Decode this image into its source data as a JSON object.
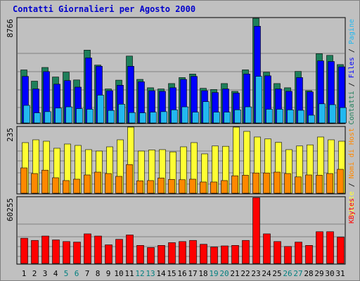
{
  "title": "Contatti Giornalieri per Agosto 2000",
  "colors": {
    "background": "#C0C0C0",
    "panel": "#C0C0C0",
    "grid": "#808080",
    "title": "#0000CC",
    "hits": "#1E7F5A",
    "files": "#0000FF",
    "pages": "#22B8F0",
    "visits": "#FFFF33",
    "hosts": "#FF8800",
    "kbytes": "#FF0000",
    "weekend_label": "#007F7F",
    "weekday_label": "#000000"
  },
  "chart_data": [
    {
      "type": "bar",
      "name": "panel-hits-files-pages",
      "ymax_label": "8766",
      "ylim": [
        0,
        8766
      ],
      "grid": true,
      "right_labels": [
        {
          "text": "Contatti",
          "color": "#1E7F5A"
        },
        {
          "text": "Files",
          "color": "#0000FF"
        },
        {
          "text": "Pagine",
          "color": "#22B8F0"
        }
      ],
      "series": [
        {
          "name": "Contatti",
          "color": "#1E7F5A",
          "values": [
            4440,
            3500,
            4650,
            3850,
            4250,
            3600,
            6100,
            4850,
            2850,
            3580,
            5600,
            3650,
            2950,
            2850,
            3300,
            3800,
            4100,
            2900,
            2800,
            3300,
            2650,
            4450,
            8766,
            4250,
            3300,
            2950,
            4320,
            2700,
            5800,
            5660,
            4890
          ]
        },
        {
          "name": "Files",
          "color": "#0000FF",
          "values": [
            3900,
            2850,
            4300,
            3250,
            3550,
            3000,
            5450,
            4750,
            2700,
            3160,
            4750,
            3450,
            2700,
            2650,
            2950,
            3650,
            3900,
            2700,
            2550,
            2850,
            2500,
            4100,
            8100,
            3950,
            2850,
            2650,
            3800,
            2600,
            5200,
            5150,
            4700
          ]
        },
        {
          "name": "Pagine",
          "color": "#22B8F0",
          "values": [
            1470,
            850,
            950,
            1250,
            1350,
            1200,
            1150,
            2330,
            1050,
            1570,
            870,
            850,
            900,
            950,
            1100,
            1350,
            900,
            1780,
            900,
            900,
            1100,
            1350,
            3900,
            1150,
            1150,
            1100,
            1060,
            650,
            1600,
            1530,
            1280
          ]
        }
      ]
    },
    {
      "type": "bar",
      "name": "panel-visits-hosts",
      "ymax_label": "235",
      "ylim": [
        0,
        235
      ],
      "grid": true,
      "right_labels": [
        {
          "text": "Visite",
          "color": "#FFFF33"
        },
        {
          "text": "Nomi di Host",
          "color": "#FF8800"
        }
      ],
      "series": [
        {
          "name": "Visite",
          "color": "#FFFF33",
          "values": [
            180,
            190,
            185,
            160,
            175,
            170,
            155,
            150,
            165,
            190,
            235,
            150,
            154,
            155,
            147,
            165,
            180,
            140,
            168,
            167,
            235,
            220,
            200,
            193,
            181,
            155,
            168,
            172,
            200,
            190,
            185
          ]
        },
        {
          "name": "Nomi di Host",
          "color": "#FF8800",
          "values": [
            90,
            70,
            82,
            55,
            45,
            50,
            65,
            75,
            70,
            60,
            102,
            44,
            45,
            54,
            49,
            48,
            50,
            40,
            40,
            45,
            62,
            64,
            72,
            72,
            75,
            70,
            58,
            65,
            64,
            70,
            85
          ]
        }
      ]
    },
    {
      "type": "bar",
      "name": "panel-kbytes",
      "ymax_label": "60255",
      "ylim": [
        0,
        60255
      ],
      "grid": true,
      "right_labels": [
        {
          "text": "KBytes",
          "color": "#FF0000"
        }
      ],
      "series": [
        {
          "name": "KBytes",
          "color": "#FF0000",
          "values": [
            23000,
            21000,
            25000,
            21500,
            20000,
            19500,
            27000,
            25000,
            17000,
            22000,
            26000,
            16500,
            14500,
            16500,
            19000,
            20000,
            21000,
            17500,
            15000,
            16000,
            16500,
            21000,
            60000,
            27000,
            20000,
            15500,
            19500,
            16500,
            29000,
            29000,
            24000
          ]
        }
      ]
    }
  ],
  "x_labels": [
    "1",
    "2",
    "3",
    "4",
    "5",
    "6",
    "7",
    "8",
    "9",
    "10",
    "11",
    "12",
    "13",
    "14",
    "15",
    "16",
    "17",
    "18",
    "19",
    "20",
    "21",
    "22",
    "23",
    "24",
    "25",
    "26",
    "27",
    "28",
    "29",
    "30",
    "31"
  ],
  "weekend_days": [
    "5",
    "6",
    "12",
    "13",
    "19",
    "20",
    "26",
    "27"
  ]
}
